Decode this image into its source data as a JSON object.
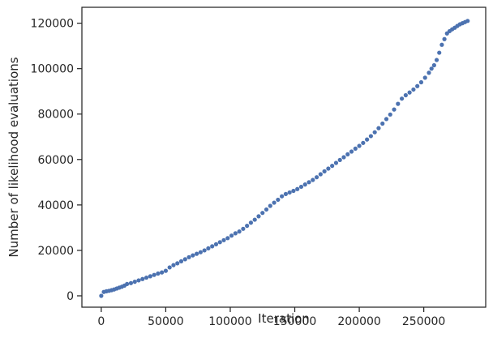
{
  "chart_data": {
    "type": "scatter",
    "title": "",
    "xlabel": "Iteration",
    "ylabel": "Number of likelihood evaluations",
    "xlim": [
      -15000,
      298000
    ],
    "ylim": [
      -5000,
      127000
    ],
    "xticks": [
      0,
      50000,
      100000,
      150000,
      200000,
      250000
    ],
    "yticks": [
      0,
      20000,
      40000,
      60000,
      80000,
      100000,
      120000
    ],
    "grid": false,
    "legend": "none",
    "marker_color": "#4c72b0",
    "series": [
      {
        "x": [
          0,
          2000,
          4000,
          6000,
          8000,
          10000,
          12000,
          14000,
          16000,
          18000,
          20000,
          23000,
          26000,
          29000,
          32000,
          35000,
          38000,
          41000,
          44000,
          47000,
          50000,
          53000,
          56000,
          59000,
          62000,
          65000,
          68000,
          71000,
          74000,
          77000,
          80000,
          83000,
          86000,
          89000,
          92000,
          95000,
          98000,
          101000,
          104000,
          107000,
          110000,
          113000,
          116000,
          119000,
          122000,
          125000,
          128000,
          131000,
          134000,
          137000,
          140000,
          143000,
          146000,
          149000,
          152000,
          155000,
          158000,
          161000,
          164000,
          167000,
          170000,
          173000,
          176000,
          179000,
          182000,
          185000,
          188000,
          191000,
          194000,
          197000,
          200000,
          203000,
          206000,
          209000,
          212000,
          215000,
          218000,
          221000,
          224000,
          227000,
          230000,
          233000,
          236000,
          239000,
          242000,
          245000,
          248000,
          251000,
          254000,
          256000,
          258000,
          260000,
          262000,
          264000,
          266000,
          268000,
          270000,
          272000,
          274000,
          276000,
          278000,
          280000,
          282000,
          284000
        ],
        "y": [
          0,
          1700,
          2000,
          2200,
          2500,
          2800,
          3200,
          3600,
          4000,
          4500,
          5200,
          5600,
          6200,
          6800,
          7400,
          8000,
          8600,
          9200,
          9800,
          10300,
          11000,
          12500,
          13500,
          14300,
          15200,
          16100,
          17000,
          17800,
          18500,
          19200,
          20000,
          20900,
          21800,
          22700,
          23600,
          24500,
          25400,
          26500,
          27500,
          28300,
          29500,
          30800,
          32200,
          33500,
          35000,
          36500,
          38000,
          39600,
          41000,
          42300,
          43800,
          44800,
          45500,
          46200,
          47000,
          48000,
          49000,
          50000,
          51000,
          52200,
          53500,
          54800,
          56000,
          57200,
          58500,
          59800,
          61000,
          62300,
          63500,
          64800,
          66000,
          67300,
          68800,
          70300,
          72000,
          73800,
          75800,
          77800,
          79800,
          82000,
          84500,
          86800,
          88300,
          89500,
          90800,
          92300,
          94000,
          96000,
          98200,
          100000,
          101500,
          103800,
          107000,
          110500,
          113000,
          115500,
          116500,
          117300,
          118000,
          118800,
          119500,
          120000,
          120500,
          121000
        ]
      }
    ]
  }
}
